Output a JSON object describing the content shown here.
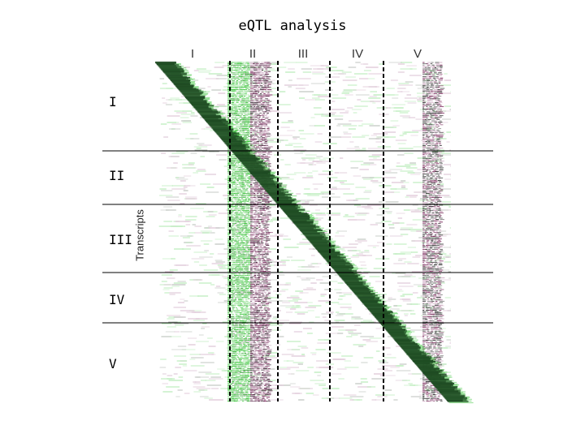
{
  "title": "e​QTL analysis",
  "axis_label": "Transcripts",
  "column_groups": [
    "I",
    "II",
    "III",
    "IV",
    "V"
  ],
  "row_groups": [
    "I",
    "II",
    "III",
    "IV",
    "V"
  ],
  "colors": {
    "green": "#2fc12f",
    "light_green": "#8fe08f",
    "purple": "#7a2a5c",
    "light_purple": "#c9a3bd",
    "dark_diagonal": "#1e4a22",
    "divider_line": "#000000"
  }
}
